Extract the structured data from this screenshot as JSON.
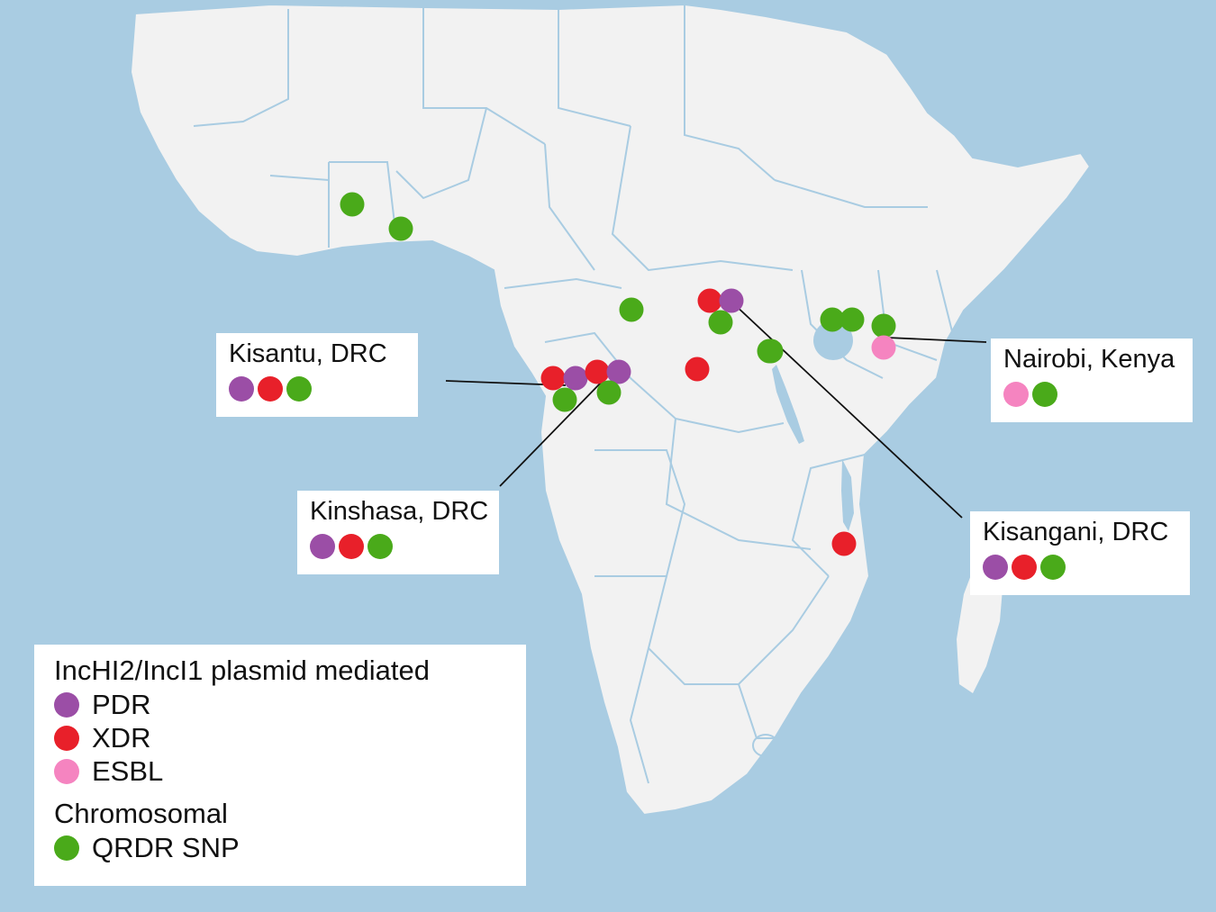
{
  "colors": {
    "sea": "#a9cce2",
    "land": "#f2f2f2",
    "border": "#a9cce2",
    "PDR": "#9b4ea6",
    "XDR": "#e8202a",
    "ESBL": "#f584c0",
    "QRDR_SNP": "#4aaa1a"
  },
  "callouts": [
    {
      "id": "kisantu",
      "label": "Kisantu, DRC",
      "dots": [
        "PDR",
        "XDR",
        "QRDR_SNP"
      ]
    },
    {
      "id": "kinshasa",
      "label": "Kinshasa, DRC",
      "dots": [
        "PDR",
        "XDR",
        "QRDR_SNP"
      ]
    },
    {
      "id": "nairobi",
      "label": "Nairobi, Kenya",
      "dots": [
        "ESBL",
        "QRDR_SNP"
      ]
    },
    {
      "id": "kisangani",
      "label": "Kisangani, DRC",
      "dots": [
        "PDR",
        "XDR",
        "QRDR_SNP"
      ]
    }
  ],
  "legend": {
    "plasmid_heading": "IncHI2/IncI1 plasmid mediated",
    "plasmid_items": [
      {
        "key": "PDR",
        "label": "PDR"
      },
      {
        "key": "XDR",
        "label": "XDR"
      },
      {
        "key": "ESBL",
        "label": "ESBL"
      }
    ],
    "chromosomal_heading": "Chromosomal",
    "chromosomal_items": [
      {
        "key": "QRDR_SNP",
        "label": "QRDR SNP"
      }
    ]
  },
  "map_markers": [
    {
      "type": "QRDR_SNP"
    },
    {
      "type": "QRDR_SNP"
    },
    {
      "type": "QRDR_SNP"
    },
    {
      "type": "XDR"
    },
    {
      "type": "PDR"
    },
    {
      "type": "QRDR_SNP"
    },
    {
      "type": "QRDR_SNP"
    },
    {
      "type": "QRDR_SNP"
    },
    {
      "type": "QRDR_SNP"
    },
    {
      "type": "QRDR_SNP"
    },
    {
      "type": "ESBL"
    },
    {
      "type": "XDR"
    },
    {
      "type": "XDR"
    },
    {
      "type": "PDR"
    },
    {
      "type": "XDR"
    },
    {
      "type": "PDR"
    },
    {
      "type": "QRDR_SNP"
    },
    {
      "type": "QRDR_SNP"
    },
    {
      "type": "XDR"
    },
    {
      "type": "QRDR_SNP"
    }
  ]
}
